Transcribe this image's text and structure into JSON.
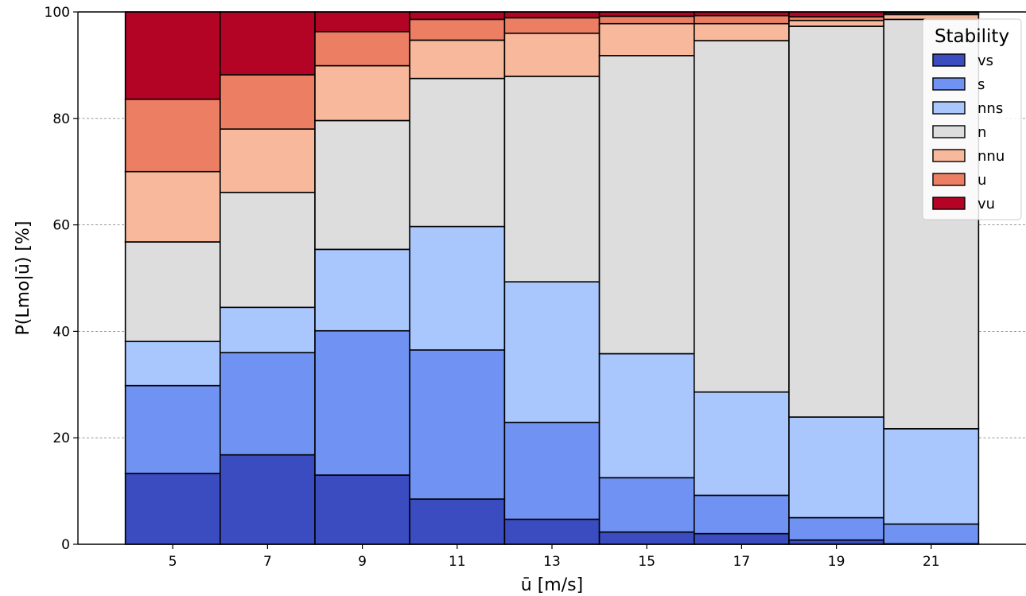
{
  "chart_data": {
    "type": "bar",
    "stacked": true,
    "normalized_percent": true,
    "title": "",
    "xlabel": "ū [m/s]",
    "ylabel": "P(Lmo|ū) [%]",
    "x": [
      5,
      7,
      9,
      11,
      13,
      15,
      17,
      19,
      21
    ],
    "bin_width": 2,
    "xlim": [
      3,
      23
    ],
    "ylim": [
      0,
      100
    ],
    "y_ticks": [
      0,
      20,
      40,
      60,
      80,
      100
    ],
    "grid": true,
    "legend": {
      "title": "Stability",
      "placement": "top-right"
    },
    "series": [
      {
        "name": "vs",
        "color": "#3b4cc0",
        "values": [
          13.3,
          16.8,
          13.0,
          8.5,
          4.7,
          2.3,
          2.0,
          0.8,
          0.1
        ]
      },
      {
        "name": "s",
        "color": "#7093f3",
        "values": [
          16.5,
          19.2,
          27.1,
          28.0,
          18.2,
          10.2,
          7.2,
          4.2,
          3.7
        ]
      },
      {
        "name": "nns",
        "color": "#aac7fd",
        "values": [
          8.3,
          8.5,
          15.3,
          23.2,
          26.4,
          23.3,
          19.4,
          18.9,
          17.9
        ]
      },
      {
        "name": "n",
        "color": "#dddddd",
        "values": [
          18.7,
          21.6,
          24.2,
          27.8,
          38.6,
          56.0,
          66.0,
          73.4,
          76.9
        ]
      },
      {
        "name": "nnu",
        "color": "#f7b89c",
        "values": [
          13.2,
          11.9,
          10.3,
          7.2,
          8.1,
          6.0,
          3.2,
          1.1,
          0.9
        ]
      },
      {
        "name": "u",
        "color": "#ec7f63",
        "values": [
          13.6,
          10.2,
          6.4,
          3.9,
          2.9,
          1.4,
          1.5,
          0.7,
          0.3
        ]
      },
      {
        "name": "vu",
        "color": "#b40426",
        "values": [
          16.4,
          11.8,
          3.7,
          1.4,
          1.1,
          0.8,
          0.7,
          0.9,
          0.2
        ]
      }
    ]
  }
}
